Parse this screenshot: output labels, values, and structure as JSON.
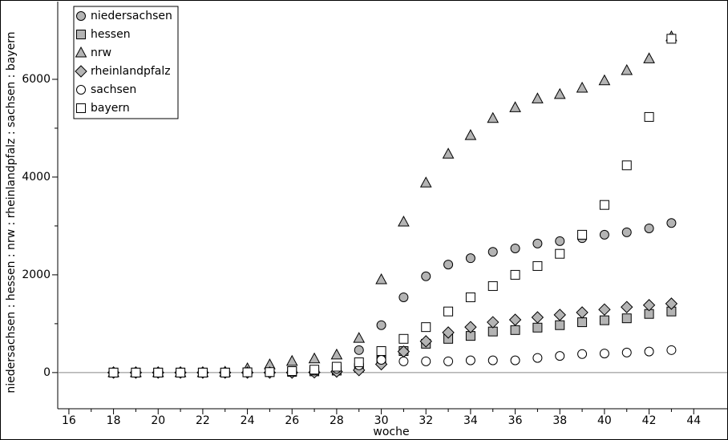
{
  "chart_data": {
    "type": "scatter",
    "x_label": "woche",
    "y_label": "niedersachsen : hessen : nrw : rheinlandpfalz : sachsen : bayern",
    "x": [
      18,
      19,
      20,
      21,
      22,
      23,
      24,
      25,
      26,
      27,
      28,
      29,
      30,
      31,
      32,
      33,
      34,
      35,
      36,
      37,
      38,
      39,
      40,
      41,
      42,
      43
    ],
    "series": [
      {
        "name": "niedersachsen",
        "marker": "circle",
        "color": "#b4b4b4",
        "values": [
          0,
          0,
          0,
          0,
          0,
          0,
          5,
          10,
          20,
          30,
          40,
          460,
          970,
          1540,
          1970,
          2210,
          2340,
          2470,
          2540,
          2640,
          2690,
          2750,
          2820,
          2870,
          2950,
          3060
        ]
      },
      {
        "name": "hessen",
        "marker": "square",
        "color": "#b4b4b4",
        "values": [
          0,
          0,
          0,
          0,
          0,
          0,
          5,
          10,
          15,
          25,
          40,
          100,
          250,
          440,
          590,
          690,
          750,
          840,
          870,
          920,
          970,
          1030,
          1070,
          1110,
          1200,
          1250
        ]
      },
      {
        "name": "nrw",
        "marker": "triangle",
        "color": "#b4b4b4",
        "values": [
          0,
          0,
          0,
          0,
          0,
          10,
          80,
          160,
          230,
          280,
          360,
          700,
          1900,
          3080,
          3880,
          4470,
          4850,
          5200,
          5420,
          5600,
          5690,
          5820,
          5970,
          6180,
          6420,
          6870
        ]
      },
      {
        "name": "rheinlandpfalz",
        "marker": "diamond",
        "color": "#b4b4b4",
        "values": [
          0,
          0,
          0,
          0,
          0,
          0,
          0,
          0,
          0,
          5,
          20,
          50,
          170,
          430,
          640,
          820,
          930,
          1030,
          1080,
          1130,
          1180,
          1230,
          1290,
          1340,
          1380,
          1410
        ]
      },
      {
        "name": "sachsen",
        "marker": "circle",
        "color": "#ffffff",
        "values": [
          0,
          0,
          0,
          0,
          0,
          0,
          5,
          10,
          20,
          40,
          80,
          150,
          260,
          230,
          230,
          230,
          250,
          250,
          250,
          300,
          340,
          380,
          390,
          410,
          430,
          460
        ]
      },
      {
        "name": "bayern",
        "marker": "square",
        "color": "#ffffff",
        "values": [
          0,
          0,
          0,
          0,
          0,
          0,
          5,
          10,
          30,
          60,
          120,
          210,
          440,
          690,
          930,
          1250,
          1540,
          1770,
          2000,
          2180,
          2430,
          2820,
          3430,
          4240,
          5230,
          6830
        ]
      }
    ],
    "xlim": [
      15.5,
      45.5
    ],
    "ylim": [
      -740,
      7590
    ],
    "xticks": [
      16,
      18,
      20,
      22,
      24,
      26,
      28,
      30,
      32,
      34,
      36,
      38,
      40,
      42,
      44
    ],
    "yticks": [
      0,
      2000,
      4000,
      6000
    ],
    "legend": "top-left"
  }
}
